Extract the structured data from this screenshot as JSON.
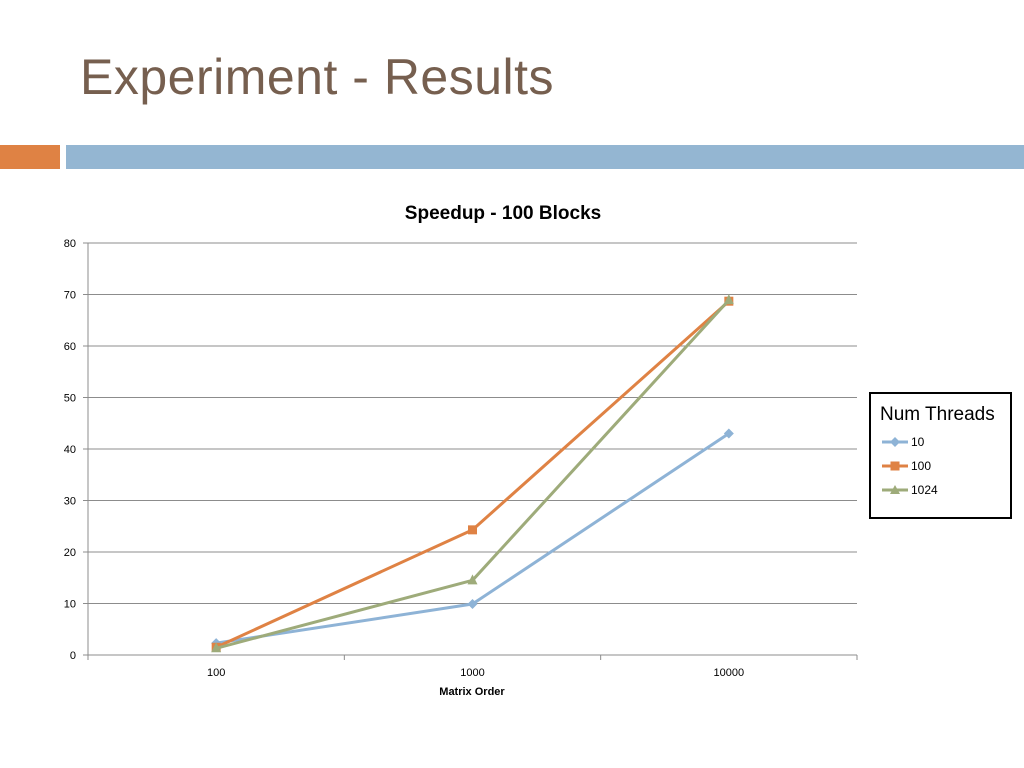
{
  "slide": {
    "title": "Experiment - Results",
    "band_colors": {
      "left": "#df8244",
      "right": "#94b6d2"
    },
    "title_color": "#765f4f"
  },
  "chart_data": {
    "type": "line",
    "title": "Speedup - 100 Blocks",
    "xlabel": "Matrix Order",
    "ylabel": "",
    "categories": [
      "100",
      "1000",
      "10000"
    ],
    "ylim": [
      0,
      80
    ],
    "yticks": [
      0,
      10,
      20,
      30,
      40,
      50,
      60,
      70,
      80
    ],
    "grid": true,
    "legend": {
      "title": "Num Threads",
      "placement": "right"
    },
    "series": [
      {
        "name": "10",
        "values": [
          2.3,
          9.9,
          43.0
        ],
        "color": "#8eb3d6",
        "marker": "diamond"
      },
      {
        "name": "100",
        "values": [
          1.5,
          24.3,
          68.7
        ],
        "color": "#df8244",
        "marker": "square"
      },
      {
        "name": "1024",
        "values": [
          1.3,
          14.5,
          68.9
        ],
        "color": "#9eab7a",
        "marker": "triangle"
      }
    ]
  }
}
